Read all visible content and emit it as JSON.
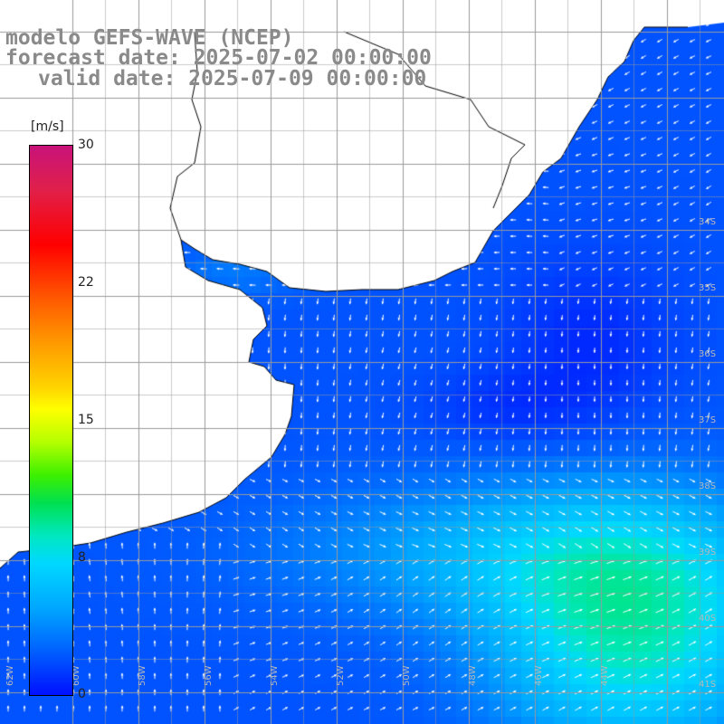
{
  "header": {
    "line1": "modelo GEFS-WAVE (NCEP)",
    "line2": "forecast date: 2025-07-02 00:00:00",
    "line3": "valid date: 2025-07-09 00:00:00"
  },
  "colorbar": {
    "unit": "[m/s]",
    "ticks": [
      {
        "value": 30,
        "label": "30"
      },
      {
        "value": 22,
        "label": "22"
      },
      {
        "value": 15,
        "label": "15"
      },
      {
        "value": 8,
        "label": "8"
      },
      {
        "value": 0,
        "label": "0"
      }
    ],
    "min": 0,
    "max": 30
  },
  "map": {
    "lat_labels": [
      "34S",
      "35S",
      "36S",
      "37S",
      "38S",
      "39S",
      "40S",
      "41S"
    ],
    "lon_labels": [
      "62W",
      "60W",
      "58W",
      "56W",
      "54W",
      "52W",
      "50W",
      "48W",
      "46W",
      "44W"
    ],
    "land_color": "#ffffff",
    "grid_color": "#9a9a9a",
    "arrow_color": "#ffffff"
  }
}
